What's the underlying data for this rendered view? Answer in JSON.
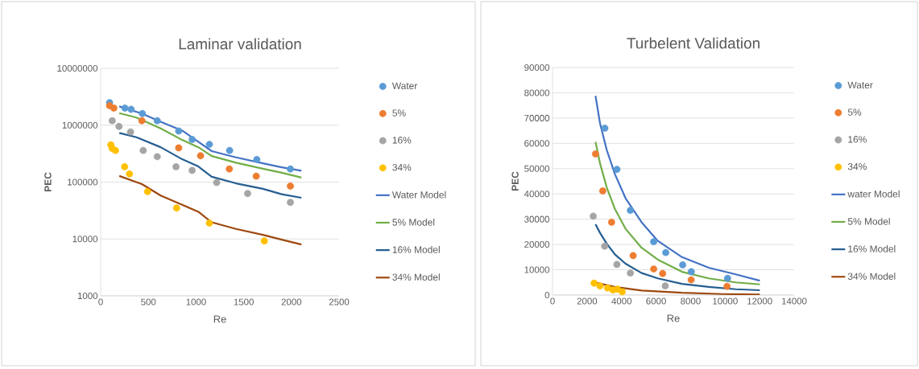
{
  "chart_data": [
    {
      "type": "scatter",
      "title": "Laminar validation",
      "xlabel": "Re",
      "ylabel": "PEC",
      "log": "y",
      "grid": "y",
      "legend": "right",
      "xlim": [
        0,
        2500
      ],
      "xticks": [
        0,
        500,
        1000,
        1500,
        2000,
        2500
      ],
      "ylim": [
        1000,
        10000000
      ],
      "yticks": [
        1000,
        10000,
        100000,
        1000000,
        10000000
      ],
      "series": [
        {
          "name": "Water",
          "marker": "circle",
          "color": "#5b9bd5",
          "x": [
            93,
            254,
            319,
            437,
            593,
            818,
            959,
            1140,
            1352,
            1637,
            1989
          ],
          "values": [
            2500000,
            2000000,
            1900000,
            1600000,
            1200000,
            790000,
            560000,
            460000,
            360000,
            250000,
            170000
          ]
        },
        {
          "name": "5%",
          "marker": "circle",
          "color": "#ed7d31",
          "x": [
            93,
            138,
            432,
            818,
            1047,
            1349,
            1631,
            1989
          ],
          "values": [
            2200000,
            2000000,
            1200000,
            400000,
            290000,
            170000,
            127000,
            85000
          ]
        },
        {
          "name": "16%",
          "marker": "circle",
          "color": "#a5a5a5",
          "x": [
            121,
            192,
            313,
            446,
            593,
            790,
            959,
            1216,
            1541,
            1989
          ],
          "values": [
            1200000,
            950000,
            760000,
            360000,
            280000,
            186000,
            160000,
            98000,
            63000,
            44000
          ]
        },
        {
          "name": "34%",
          "marker": "circle",
          "color": "#ffc000",
          "x": [
            107,
            121,
            155,
            251,
            302,
            491,
            796,
            1140,
            1716
          ],
          "values": [
            450000,
            390000,
            360000,
            186000,
            139000,
            68000,
            35000,
            19000,
            9200
          ]
        },
        {
          "name": "Water Model",
          "type": "line",
          "color": "#4472c4",
          "x": [
            195,
            432,
            629,
            855,
            1024,
            1165,
            1419,
            1701,
            1899,
            2105
          ],
          "values": [
            2140000,
            1600000,
            1150000,
            805000,
            510000,
            350000,
            272000,
            214000,
            182000,
            158000
          ]
        },
        {
          "name": "5% Model",
          "type": "line",
          "color": "#70ad47",
          "x": [
            195,
            376,
            629,
            855,
            1024,
            1165,
            1419,
            1701,
            1899,
            2105
          ],
          "values": [
            1630000,
            1360000,
            880000,
            550000,
            410000,
            287000,
            219000,
            172000,
            146000,
            120000
          ]
        },
        {
          "name": "16% Model",
          "type": "line",
          "color": "#255e91",
          "x": [
            195,
            376,
            629,
            855,
            1024,
            1165,
            1419,
            1701,
            1899,
            2105
          ],
          "values": [
            730000,
            613000,
            410000,
            252000,
            188000,
            124000,
            95000,
            76000,
            61000,
            53000
          ]
        },
        {
          "name": "34% Model",
          "type": "line",
          "color": "#9e480e",
          "x": [
            195,
            432,
            629,
            855,
            1024,
            1165,
            1419,
            1701,
            1899,
            2105
          ],
          "values": [
            128000,
            92000,
            58000,
            40000,
            30000,
            19600,
            15000,
            11800,
            9700,
            8000
          ]
        }
      ]
    },
    {
      "type": "scatter",
      "title": "Turbelent Validation",
      "xlabel": "Re",
      "ylabel": "PEC",
      "grid": "y",
      "legend": "right",
      "xlim": [
        0,
        14000
      ],
      "xticks": [
        0,
        2000,
        4000,
        6000,
        8000,
        10000,
        12000,
        14000
      ],
      "ylim": [
        0,
        90000
      ],
      "yticks": [
        0,
        10000,
        20000,
        30000,
        40000,
        50000,
        60000,
        70000,
        80000,
        90000
      ],
      "series": [
        {
          "name": "Water",
          "marker": "circle",
          "color": "#5b9bd5",
          "x": [
            3030,
            3730,
            4510,
            5860,
            6560,
            7540,
            8040,
            10140
          ],
          "values": [
            66000,
            49700,
            33500,
            21100,
            16800,
            11900,
            9200,
            6600
          ]
        },
        {
          "name": "5%",
          "marker": "circle",
          "color": "#ed7d31",
          "x": [
            2490,
            2910,
            3420,
            4670,
            5860,
            6380,
            8030,
            10110
          ],
          "values": [
            55800,
            41200,
            28800,
            15600,
            10300,
            8500,
            6000,
            3400
          ]
        },
        {
          "name": "16%",
          "marker": "circle",
          "color": "#a5a5a5",
          "x": [
            2360,
            3020,
            3730,
            4510,
            6530
          ],
          "values": [
            31200,
            19300,
            12100,
            8700,
            3600
          ]
        },
        {
          "name": "34%",
          "marker": "circle",
          "color": "#ffc000",
          "x": [
            2410,
            2750,
            3190,
            3500,
            3760,
            4040
          ],
          "values": [
            4700,
            3600,
            2800,
            2000,
            2300,
            1300
          ]
        },
        {
          "name": "water Model",
          "type": "line",
          "color": "#4472c4",
          "x": [
            2490,
            2750,
            3140,
            3610,
            4230,
            5160,
            6100,
            7500,
            9050,
            10610,
            12010
          ],
          "values": [
            78800,
            68000,
            57400,
            47900,
            38300,
            28800,
            21400,
            15000,
            10800,
            8200,
            5700
          ]
        },
        {
          "name": "5% Model",
          "type": "line",
          "color": "#70ad47",
          "x": [
            2490,
            2750,
            3140,
            3610,
            4230,
            5160,
            6100,
            7500,
            9050,
            10610,
            12010
          ],
          "values": [
            60600,
            52100,
            42600,
            34100,
            26200,
            18700,
            14000,
            9200,
            6600,
            5000,
            4200
          ]
        },
        {
          "name": "16% Model",
          "type": "line",
          "color": "#255e91",
          "x": [
            2490,
            2750,
            3140,
            3610,
            4230,
            5160,
            6100,
            7500,
            9050,
            10610,
            12010
          ],
          "values": [
            28000,
            24600,
            20300,
            16100,
            12400,
            8700,
            6600,
            4400,
            3200,
            2300,
            1900
          ]
        },
        {
          "name": "34% Model",
          "type": "line",
          "color": "#9e480e",
          "x": [
            2490,
            3610,
            5160,
            7500,
            9830,
            12010
          ],
          "values": [
            4900,
            3200,
            1800,
            900,
            400,
            200
          ]
        }
      ]
    }
  ]
}
